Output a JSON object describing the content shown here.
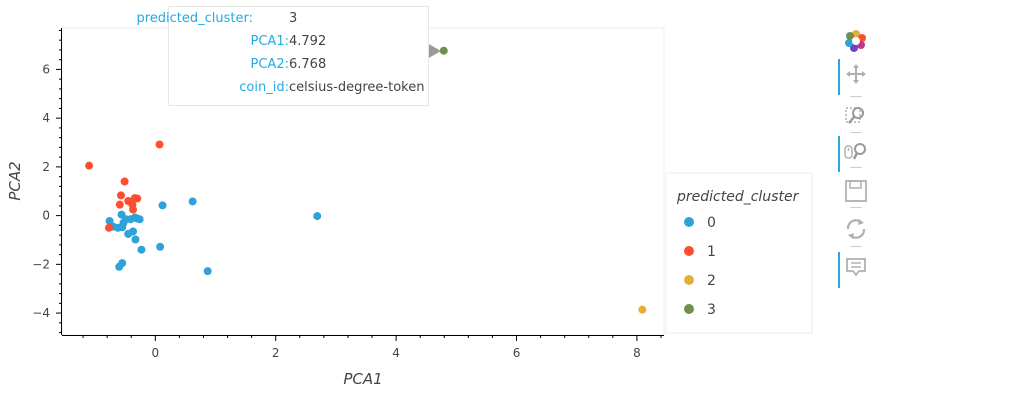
{
  "chart_data": {
    "type": "scatter",
    "xlabel": "PCA1",
    "ylabel": "PCA2",
    "xlim": [
      -1.55,
      8.45
    ],
    "ylim": [
      -4.9,
      7.7
    ],
    "x_ticks": [
      0,
      2,
      4,
      6,
      8
    ],
    "y_ticks": [
      -4,
      -2,
      0,
      2,
      4,
      6
    ],
    "legend": {
      "title": "predicted_cluster",
      "placement": "right"
    },
    "series": [
      {
        "name": "0",
        "color": "#30a2da",
        "points": [
          [
            -0.76,
            -0.22
          ],
          [
            -0.7,
            -0.45
          ],
          [
            -0.62,
            -0.5
          ],
          [
            -0.56,
            0.04
          ],
          [
            -0.53,
            -0.3
          ],
          [
            -0.49,
            -0.15
          ],
          [
            -0.45,
            -0.75
          ],
          [
            -0.41,
            -0.15
          ],
          [
            -0.37,
            -0.65
          ],
          [
            -0.34,
            -0.08
          ],
          [
            -0.3,
            -0.12
          ],
          [
            -0.26,
            -0.15
          ],
          [
            -0.55,
            -0.48
          ],
          [
            -0.33,
            -0.98
          ],
          [
            -0.23,
            -1.4
          ],
          [
            -0.55,
            -1.95
          ],
          [
            -0.6,
            -2.1
          ],
          [
            0.08,
            -1.28
          ],
          [
            0.12,
            0.42
          ],
          [
            0.62,
            0.58
          ],
          [
            0.87,
            -2.28
          ],
          [
            2.69,
            -0.02
          ]
        ]
      },
      {
        "name": "1",
        "color": "#fc4f30",
        "points": [
          [
            -1.1,
            2.05
          ],
          [
            0.07,
            2.92
          ],
          [
            -0.51,
            1.4
          ],
          [
            -0.57,
            0.83
          ],
          [
            -0.59,
            0.45
          ],
          [
            -0.45,
            0.6
          ],
          [
            -0.34,
            0.72
          ],
          [
            -0.3,
            0.7
          ],
          [
            -0.38,
            0.45
          ],
          [
            -0.37,
            0.25
          ],
          [
            -0.77,
            -0.5
          ]
        ]
      },
      {
        "name": "2",
        "color": "#e5ae38",
        "points": [
          [
            8.09,
            -3.86
          ]
        ]
      },
      {
        "name": "3",
        "color": "#6d904f",
        "points": [
          [
            4.792,
            6.768
          ]
        ]
      }
    ]
  },
  "tooltip": {
    "rows": [
      {
        "key": "predicted_cluster",
        "value": "3"
      },
      {
        "key": "PCA1",
        "value": "4.792"
      },
      {
        "key": "PCA2",
        "value": "6.768"
      },
      {
        "key": "coin_id",
        "value": "celsius-degree-token"
      }
    ]
  },
  "toolbar": {
    "tools": [
      {
        "name": "bokeh-logo",
        "icon": "bokeh-logo-icon",
        "active": false
      },
      {
        "name": "pan-tool",
        "icon": "pan-icon",
        "active": true
      },
      {
        "name": "box-zoom-tool",
        "icon": "box-zoom-icon",
        "active": false
      },
      {
        "name": "wheel-zoom-tool",
        "icon": "wheel-zoom-icon",
        "active": true
      },
      {
        "name": "save-tool",
        "icon": "save-icon",
        "active": false
      },
      {
        "name": "reset-tool",
        "icon": "reset-icon",
        "active": false
      },
      {
        "name": "hover-tool",
        "icon": "hover-icon",
        "active": true
      }
    ]
  }
}
